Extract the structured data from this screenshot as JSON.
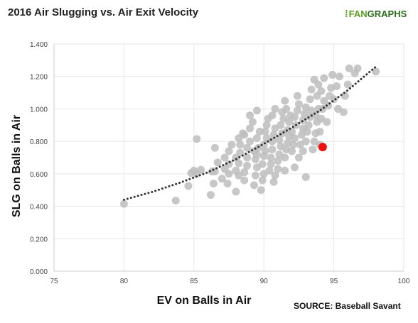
{
  "colors": {
    "point": "#bdbdbd",
    "highlight": "#ee1111",
    "trend": "#333333",
    "grid": "#e6e6e6",
    "axis": "#cccccc",
    "tick_text": "#444444",
    "brand_light": "#5a9e1f",
    "brand_dark": "#2d6e1e"
  },
  "header": {
    "title": "2016 Air  Slugging vs. Air Exit Velocity",
    "logo_fan": "FAN",
    "logo_graphs": "GRAPHS",
    "logo_icon": "fangraphs-logo-icon"
  },
  "footer": {
    "source": "SOURCE:  Baseball Savant"
  },
  "chart_data": {
    "type": "scatter",
    "title": "2016 Air  Slugging vs. Air Exit Velocity",
    "xlabel": "EV on Balls in Air",
    "ylabel": "SLG on Balls in Air",
    "xlim": [
      75,
      100
    ],
    "ylim": [
      0,
      1.4
    ],
    "x_ticks": [
      75,
      80,
      85,
      90,
      95,
      100
    ],
    "x_tick_labels": [
      "75",
      "80",
      "85",
      "90",
      "95",
      "100"
    ],
    "y_ticks": [
      0,
      0.2,
      0.4,
      0.6,
      0.8,
      1.0,
      1.2,
      1.4
    ],
    "y_tick_labels": [
      "0.000",
      "0.200",
      "0.400",
      "0.600",
      "0.800",
      "1.000",
      "1.200",
      "1.400"
    ],
    "grid": true,
    "legend": "none",
    "series": [
      {
        "points": [
          [
            80.0,
            0.415
          ],
          [
            83.7,
            0.435
          ],
          [
            84.6,
            0.525
          ],
          [
            84.8,
            0.605
          ],
          [
            85.0,
            0.62
          ],
          [
            85.2,
            0.6
          ],
          [
            85.5,
            0.625
          ],
          [
            85.2,
            0.815
          ],
          [
            86.2,
            0.47
          ],
          [
            86.4,
            0.54
          ],
          [
            86.3,
            0.615
          ],
          [
            86.5,
            0.615
          ],
          [
            86.7,
            0.67
          ],
          [
            86.5,
            0.76
          ],
          [
            87.0,
            0.57
          ],
          [
            87.2,
            0.63
          ],
          [
            87.5,
            0.66
          ],
          [
            87.2,
            0.7
          ],
          [
            87.5,
            0.74
          ],
          [
            87.7,
            0.78
          ],
          [
            87.4,
            0.54
          ],
          [
            88.0,
            0.49
          ],
          [
            88.2,
            0.59
          ],
          [
            88.0,
            0.62
          ],
          [
            88.2,
            0.665
          ],
          [
            88.0,
            0.7
          ],
          [
            88.3,
            0.73
          ],
          [
            88.3,
            0.78
          ],
          [
            88.2,
            0.82
          ],
          [
            88.5,
            0.85
          ],
          [
            88.6,
            0.56
          ],
          [
            88.6,
            0.61
          ],
          [
            88.8,
            0.65
          ],
          [
            88.8,
            0.7
          ],
          [
            88.8,
            0.76
          ],
          [
            89.0,
            0.8
          ],
          [
            89.0,
            0.88
          ],
          [
            89.2,
            0.92
          ],
          [
            89.0,
            0.96
          ],
          [
            89.3,
            0.53
          ],
          [
            89.4,
            0.59
          ],
          [
            89.5,
            0.64
          ],
          [
            89.4,
            0.69
          ],
          [
            89.5,
            0.72
          ],
          [
            89.6,
            0.76
          ],
          [
            89.5,
            0.82
          ],
          [
            89.7,
            0.86
          ],
          [
            89.5,
            0.99
          ],
          [
            89.8,
            0.5
          ],
          [
            89.9,
            0.56
          ],
          [
            90.0,
            0.6
          ],
          [
            89.9,
            0.66
          ],
          [
            90.0,
            0.71
          ],
          [
            90.1,
            0.74
          ],
          [
            90.0,
            0.78
          ],
          [
            90.2,
            0.82
          ],
          [
            90.1,
            0.86
          ],
          [
            90.2,
            0.9
          ],
          [
            90.3,
            0.94
          ],
          [
            90.4,
            0.62
          ],
          [
            90.5,
            0.66
          ],
          [
            90.5,
            0.7
          ],
          [
            90.6,
            0.75
          ],
          [
            90.6,
            0.8
          ],
          [
            90.7,
            0.84
          ],
          [
            90.8,
            0.88
          ],
          [
            90.6,
            0.96
          ],
          [
            90.8,
            1.0
          ],
          [
            90.8,
            0.59
          ],
          [
            91.0,
            0.63
          ],
          [
            91.0,
            0.68
          ],
          [
            91.1,
            0.72
          ],
          [
            91.2,
            0.77
          ],
          [
            91.1,
            0.81
          ],
          [
            91.3,
            0.85
          ],
          [
            91.2,
            0.9
          ],
          [
            91.4,
            0.94
          ],
          [
            91.3,
            0.98
          ],
          [
            91.5,
            1.05
          ],
          [
            91.5,
            0.7
          ],
          [
            91.6,
            0.75
          ],
          [
            91.7,
            0.79
          ],
          [
            91.8,
            0.83
          ],
          [
            91.7,
            0.87
          ],
          [
            91.8,
            0.92
          ],
          [
            91.9,
            0.96
          ],
          [
            91.6,
            1.0
          ],
          [
            92.0,
            0.74
          ],
          [
            92.1,
            0.78
          ],
          [
            92.2,
            0.82
          ],
          [
            92.0,
            0.86
          ],
          [
            92.3,
            0.9
          ],
          [
            92.2,
            0.95
          ],
          [
            92.4,
            0.99
          ],
          [
            92.5,
            1.03
          ],
          [
            92.4,
            1.08
          ],
          [
            92.5,
            0.7
          ],
          [
            92.6,
            0.78
          ],
          [
            92.7,
            0.84
          ],
          [
            92.8,
            0.88
          ],
          [
            92.8,
            0.93
          ],
          [
            92.9,
            0.97
          ],
          [
            93.0,
            1.01
          ],
          [
            93.0,
            0.8
          ],
          [
            93.1,
            0.86
          ],
          [
            93.2,
            0.9
          ],
          [
            93.3,
            0.95
          ],
          [
            93.4,
            0.99
          ],
          [
            93.3,
            1.06
          ],
          [
            93.4,
            1.12
          ],
          [
            93.5,
            0.75
          ],
          [
            93.6,
            0.8
          ],
          [
            93.7,
            0.85
          ],
          [
            93.8,
            0.92
          ],
          [
            93.7,
            0.96
          ],
          [
            93.9,
            1.0
          ],
          [
            93.8,
            1.08
          ],
          [
            93.9,
            1.15
          ],
          [
            93.6,
            1.18
          ],
          [
            94.0,
            0.78
          ],
          [
            94.0,
            0.86
          ],
          [
            94.1,
            0.94
          ],
          [
            94.2,
            1.0
          ],
          [
            94.3,
            1.05
          ],
          [
            94.1,
            1.11
          ],
          [
            94.3,
            1.19
          ],
          [
            94.5,
            0.92
          ],
          [
            94.6,
            1.02
          ],
          [
            94.7,
            1.08
          ],
          [
            94.8,
            1.13
          ],
          [
            94.9,
            1.21
          ],
          [
            95.0,
            1.06
          ],
          [
            95.2,
            1.14
          ],
          [
            95.3,
            1.0
          ],
          [
            95.4,
            1.2
          ],
          [
            95.7,
            0.98
          ],
          [
            95.8,
            1.08
          ],
          [
            96.0,
            1.15
          ],
          [
            96.1,
            1.25
          ],
          [
            96.5,
            1.22
          ],
          [
            96.7,
            1.25
          ],
          [
            98.0,
            1.23
          ],
          [
            93.0,
            0.58
          ],
          [
            92.2,
            0.64
          ],
          [
            90.7,
            0.55
          ],
          [
            91.5,
            0.62
          ],
          [
            92.8,
            0.74
          ],
          [
            89.3,
            0.74
          ],
          [
            88.6,
            0.84
          ],
          [
            87.5,
            0.6
          ]
        ]
      }
    ],
    "highlight_point": [
      94.2,
      0.765
    ],
    "trendline": {
      "style": "dotted",
      "x": [
        80,
        82,
        84,
        86,
        88,
        90,
        92,
        94,
        96,
        98
      ],
      "y": [
        0.44,
        0.488,
        0.545,
        0.61,
        0.69,
        0.785,
        0.885,
        0.99,
        1.115,
        1.26
      ]
    }
  }
}
